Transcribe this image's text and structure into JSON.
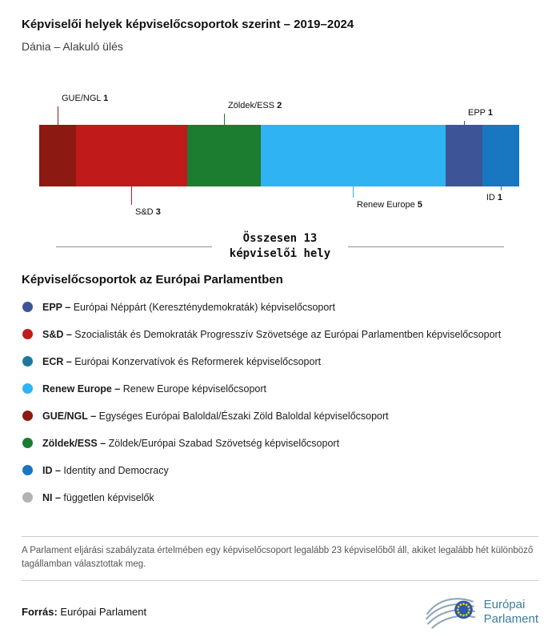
{
  "header": {
    "title": "Képviselői helyek képviselőcsoportok szerint – 2019–2024",
    "subtitle": "Dánia – Alakuló ülés"
  },
  "chart_data": {
    "type": "bar",
    "variant": "horizontal-stacked-seat-bar",
    "title": "Képviselői helyek képviselőcsoportok szerint – 2019–2024",
    "subtitle": "Dánia – Alakuló ülés",
    "total": 13,
    "total_label": "Összesen 13 képviselői hely",
    "segments": [
      {
        "group": "GUE/NGL",
        "seats": 1,
        "color": "#8c1a13",
        "label_side": "top",
        "label_level": 3,
        "label_align": "left"
      },
      {
        "group": "S&D",
        "seats": 3,
        "color": "#c01a1a",
        "label_side": "bottom",
        "label_level": 3,
        "label_align": "left"
      },
      {
        "group": "Zöldek/ESS",
        "seats": 2,
        "color": "#1c7c30",
        "label_side": "top",
        "label_level": 2,
        "label_align": "left"
      },
      {
        "group": "Renew Europe",
        "seats": 5,
        "color": "#2fb3f2",
        "label_side": "bottom",
        "label_level": 2,
        "label_align": "left"
      },
      {
        "group": "EPP",
        "seats": 1,
        "color": "#3d5597",
        "label_side": "top",
        "label_level": 1,
        "label_align": "left"
      },
      {
        "group": "ID",
        "seats": 1,
        "color": "#1877c0",
        "label_side": "bottom",
        "label_level": 1,
        "label_align": "right"
      }
    ]
  },
  "legend": {
    "title": "Képviselőcsoportok az Európai Parlamentben",
    "items": [
      {
        "bold": "EPP –",
        "text": "Európai Néppárt (Kereszténydemokraták) képviselőcsoport",
        "color": "#3d5597"
      },
      {
        "bold": "S&D –",
        "text": "Szocialisták és Demokraták Progresszív Szövetsége az Európai Parlamentben képviselőcsoport",
        "color": "#c01a1a"
      },
      {
        "bold": "ECR –",
        "text": "Európai Konzervatívok és Reformerek képviselőcsoport",
        "color": "#20789f"
      },
      {
        "bold": "Renew Europe –",
        "text": "Renew Europe képviselőcsoport",
        "color": "#2fb3f2"
      },
      {
        "bold": "GUE/NGL –",
        "text": "Egységes Európai Baloldal/Északi Zöld Baloldal képviselőcsoport",
        "color": "#8c1a13"
      },
      {
        "bold": "Zöldek/ESS –",
        "text": "Zöldek/Európai Szabad Szövetség képviselőcsoport",
        "color": "#1c7c30"
      },
      {
        "bold": "ID –",
        "text": "Identity and Democracy",
        "color": "#1877c0"
      },
      {
        "bold": "NI –",
        "text": "független képviselők",
        "color": "#b3b3b3"
      }
    ]
  },
  "note": {
    "text": "A Parlament eljárási szabályzata értelmében egy képviselőcsoport legalább 23 képviselőből áll, akiket legalább hét különböző tagállamban választottak meg."
  },
  "footer": {
    "source_label": "Forrás:",
    "source_value": "Európai Parlament",
    "logo_line1": "Európai",
    "logo_line2": "Parlament"
  }
}
